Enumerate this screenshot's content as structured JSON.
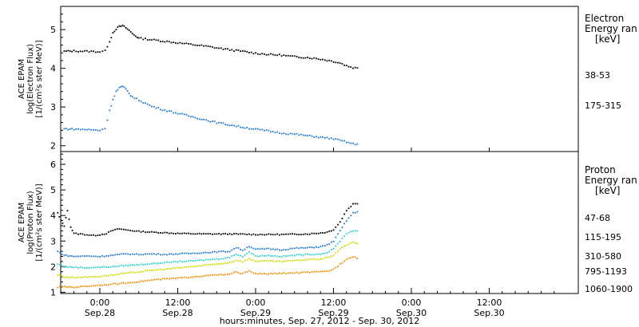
{
  "chart_data": [
    {
      "type": "scatter",
      "panel": "electron",
      "ylabel": [
        "ACE EPAM",
        "log(Electron Flux)",
        "[1/(cm²s ster MeV)]"
      ],
      "ylim": [
        1.85,
        5.6
      ],
      "yticks": [
        2,
        3,
        4,
        5
      ],
      "legend_title": [
        "Electron",
        "Energy ran",
        "[keV]"
      ],
      "x_units": "hours since 00:00 Sep 28, 2012",
      "xlim": [
        -7,
        41
      ],
      "series": [
        {
          "name": "38-53",
          "color": "#000000",
          "points": [
            [
              -5.5,
              4.44
            ],
            [
              -4,
              4.45
            ],
            [
              -2,
              4.44
            ],
            [
              0,
              4.43
            ],
            [
              0.8,
              4.45
            ],
            [
              1.5,
              4.7
            ],
            [
              2,
              4.92
            ],
            [
              2.5,
              5.02
            ],
            [
              3,
              5.08
            ],
            [
              3.5,
              5.1
            ],
            [
              4,
              5.05
            ],
            [
              4.5,
              4.98
            ],
            [
              5,
              4.9
            ],
            [
              5.5,
              4.84
            ],
            [
              6,
              4.78
            ],
            [
              7,
              4.76
            ],
            [
              8,
              4.74
            ],
            [
              10,
              4.7
            ],
            [
              12,
              4.66
            ],
            [
              14,
              4.62
            ],
            [
              16,
              4.58
            ],
            [
              18,
              4.53
            ],
            [
              20,
              4.48
            ],
            [
              22,
              4.44
            ],
            [
              24,
              4.39
            ],
            [
              26,
              4.36
            ],
            [
              28,
              4.34
            ],
            [
              30,
              4.3
            ],
            [
              32,
              4.28
            ],
            [
              34,
              4.24
            ],
            [
              36,
              4.18
            ],
            [
              37,
              4.14
            ],
            [
              38,
              4.07
            ],
            [
              39,
              4.02
            ],
            [
              40,
              4.0
            ]
          ]
        },
        {
          "name": "175-315",
          "color": "#1e78d2",
          "points": [
            [
              -5.5,
              2.44
            ],
            [
              -4,
              2.43
            ],
            [
              -2,
              2.42
            ],
            [
              0,
              2.4
            ],
            [
              0.8,
              2.45
            ],
            [
              1.5,
              2.9
            ],
            [
              2,
              3.2
            ],
            [
              2.5,
              3.4
            ],
            [
              3,
              3.5
            ],
            [
              3.5,
              3.53
            ],
            [
              4,
              3.46
            ],
            [
              4.5,
              3.36
            ],
            [
              5,
              3.26
            ],
            [
              6,
              3.18
            ],
            [
              7,
              3.1
            ],
            [
              8,
              3.02
            ],
            [
              10,
              2.92
            ],
            [
              12,
              2.84
            ],
            [
              14,
              2.76
            ],
            [
              16,
              2.68
            ],
            [
              18,
              2.6
            ],
            [
              20,
              2.54
            ],
            [
              22,
              2.48
            ],
            [
              24,
              2.43
            ],
            [
              26,
              2.38
            ],
            [
              28,
              2.33
            ],
            [
              30,
              2.3
            ],
            [
              32,
              2.26
            ],
            [
              34,
              2.22
            ],
            [
              36,
              2.18
            ],
            [
              37,
              2.14
            ],
            [
              38,
              2.1
            ],
            [
              39,
              2.05
            ],
            [
              40,
              2.02
            ]
          ]
        }
      ]
    },
    {
      "type": "scatter",
      "panel": "proton",
      "ylabel": [
        "ACE EPAM",
        "log(Proton Flux)",
        "[1/(cm²s ster MeV)]"
      ],
      "ylim": [
        0.95,
        6.5
      ],
      "yticks": [
        1,
        2,
        3,
        4,
        5,
        6
      ],
      "legend_title": [
        "Proton",
        "Energy ran",
        "[keV]"
      ],
      "x_units": "hours since 00:00 Sep 28, 2012",
      "xlim": [
        -7,
        41
      ],
      "series": [
        {
          "name": "47-68",
          "color": "#000000",
          "points": [
            [
              -6.5,
              4.1
            ],
            [
              -6,
              3.8
            ],
            [
              -5.5,
              3.6
            ],
            [
              -5,
              4.2
            ],
            [
              -4.5,
              3.55
            ],
            [
              -4,
              3.3
            ],
            [
              -3,
              3.28
            ],
            [
              -2,
              3.25
            ],
            [
              -1,
              3.22
            ],
            [
              0,
              3.25
            ],
            [
              1,
              3.3
            ],
            [
              2,
              3.42
            ],
            [
              3,
              3.48
            ],
            [
              4,
              3.44
            ],
            [
              6,
              3.38
            ],
            [
              8,
              3.35
            ],
            [
              10,
              3.33
            ],
            [
              12,
              3.3
            ],
            [
              16,
              3.28
            ],
            [
              20,
              3.28
            ],
            [
              24,
              3.26
            ],
            [
              28,
              3.26
            ],
            [
              32,
              3.28
            ],
            [
              34,
              3.32
            ],
            [
              35,
              3.35
            ],
            [
              36,
              3.45
            ],
            [
              37,
              3.75
            ],
            [
              38,
              4.2
            ],
            [
              39,
              4.45
            ],
            [
              40,
              4.48
            ]
          ]
        },
        {
          "name": "115-195",
          "color": "#1e78d2",
          "points": [
            [
              -6.5,
              2.6
            ],
            [
              -5.5,
              2.45
            ],
            [
              -4,
              2.4
            ],
            [
              -2,
              2.42
            ],
            [
              0,
              2.4
            ],
            [
              2,
              2.45
            ],
            [
              4,
              2.5
            ],
            [
              6,
              2.48
            ],
            [
              8,
              2.5
            ],
            [
              10,
              2.48
            ],
            [
              12,
              2.5
            ],
            [
              14,
              2.52
            ],
            [
              16,
              2.55
            ],
            [
              18,
              2.58
            ],
            [
              20,
              2.6
            ],
            [
              21,
              2.75
            ],
            [
              22,
              2.65
            ],
            [
              23,
              2.8
            ],
            [
              24,
              2.68
            ],
            [
              26,
              2.7
            ],
            [
              28,
              2.66
            ],
            [
              30,
              2.72
            ],
            [
              32,
              2.74
            ],
            [
              34,
              2.78
            ],
            [
              35,
              2.85
            ],
            [
              36,
              3.0
            ],
            [
              37,
              3.4
            ],
            [
              38,
              3.8
            ],
            [
              39,
              4.1
            ],
            [
              40,
              4.15
            ]
          ]
        },
        {
          "name": "310-580",
          "color": "#28d2d2",
          "points": [
            [
              -6.5,
              2.1
            ],
            [
              -5.5,
              2.0
            ],
            [
              -4,
              1.98
            ],
            [
              -2,
              1.96
            ],
            [
              0,
              1.98
            ],
            [
              2,
              2.0
            ],
            [
              4,
              2.05
            ],
            [
              6,
              2.08
            ],
            [
              8,
              2.12
            ],
            [
              10,
              2.16
            ],
            [
              12,
              2.2
            ],
            [
              14,
              2.22
            ],
            [
              16,
              2.26
            ],
            [
              18,
              2.3
            ],
            [
              20,
              2.36
            ],
            [
              21,
              2.5
            ],
            [
              22,
              2.4
            ],
            [
              23,
              2.58
            ],
            [
              24,
              2.42
            ],
            [
              26,
              2.44
            ],
            [
              28,
              2.4
            ],
            [
              30,
              2.45
            ],
            [
              32,
              2.48
            ],
            [
              34,
              2.5
            ],
            [
              35,
              2.55
            ],
            [
              36,
              2.7
            ],
            [
              37,
              3.0
            ],
            [
              38,
              3.3
            ],
            [
              39,
              3.4
            ],
            [
              40,
              3.42
            ]
          ]
        },
        {
          "name": "795-1193",
          "color": "#d2dc00",
          "points": [
            [
              -6.5,
              1.68
            ],
            [
              -5.5,
              1.6
            ],
            [
              -4,
              1.58
            ],
            [
              -2,
              1.6
            ],
            [
              0,
              1.62
            ],
            [
              2,
              1.68
            ],
            [
              4,
              1.74
            ],
            [
              6,
              1.8
            ],
            [
              8,
              1.86
            ],
            [
              10,
              1.9
            ],
            [
              12,
              1.95
            ],
            [
              14,
              2.0
            ],
            [
              16,
              2.05
            ],
            [
              18,
              2.1
            ],
            [
              20,
              2.16
            ],
            [
              21,
              2.25
            ],
            [
              22,
              2.2
            ],
            [
              23,
              2.3
            ],
            [
              24,
              2.22
            ],
            [
              26,
              2.22
            ],
            [
              28,
              2.2
            ],
            [
              30,
              2.24
            ],
            [
              32,
              2.28
            ],
            [
              34,
              2.3
            ],
            [
              35,
              2.35
            ],
            [
              36,
              2.45
            ],
            [
              37,
              2.7
            ],
            [
              38,
              2.85
            ],
            [
              39,
              2.95
            ],
            [
              40,
              2.9
            ]
          ]
        },
        {
          "name": "1060-1900",
          "color": "#f08c00",
          "points": [
            [
              -6.5,
              1.2
            ],
            [
              -5.5,
              1.22
            ],
            [
              -4,
              1.2
            ],
            [
              -2,
              1.24
            ],
            [
              0,
              1.28
            ],
            [
              2,
              1.32
            ],
            [
              4,
              1.36
            ],
            [
              6,
              1.42
            ],
            [
              8,
              1.48
            ],
            [
              10,
              1.52
            ],
            [
              12,
              1.55
            ],
            [
              14,
              1.6
            ],
            [
              16,
              1.64
            ],
            [
              18,
              1.68
            ],
            [
              20,
              1.7
            ],
            [
              21,
              1.8
            ],
            [
              22,
              1.72
            ],
            [
              23,
              1.85
            ],
            [
              24,
              1.72
            ],
            [
              26,
              1.72
            ],
            [
              28,
              1.74
            ],
            [
              30,
              1.76
            ],
            [
              32,
              1.78
            ],
            [
              34,
              1.8
            ],
            [
              35,
              1.82
            ],
            [
              36,
              1.9
            ],
            [
              37,
              2.1
            ],
            [
              38,
              2.3
            ],
            [
              39,
              2.4
            ],
            [
              40,
              2.3
            ]
          ]
        }
      ]
    }
  ],
  "xaxis": {
    "ticks": [
      {
        "x": 0,
        "time": "0:00",
        "date": "Sep.28"
      },
      {
        "x": 12,
        "time": "12:00",
        "date": "Sep.28"
      },
      {
        "x": 24,
        "time": "0:00",
        "date": "Sep.29"
      },
      {
        "x": 36,
        "time": "12:00",
        "date": "Sep.29"
      },
      {
        "x": 48,
        "time": "0:00",
        "date": "Sep.30"
      },
      {
        "x": 60,
        "time": "12:00",
        "date": "Sep.30"
      }
    ],
    "title": "hours:minutes, Sep. 27, 2012 - Sep. 30, 2012"
  }
}
